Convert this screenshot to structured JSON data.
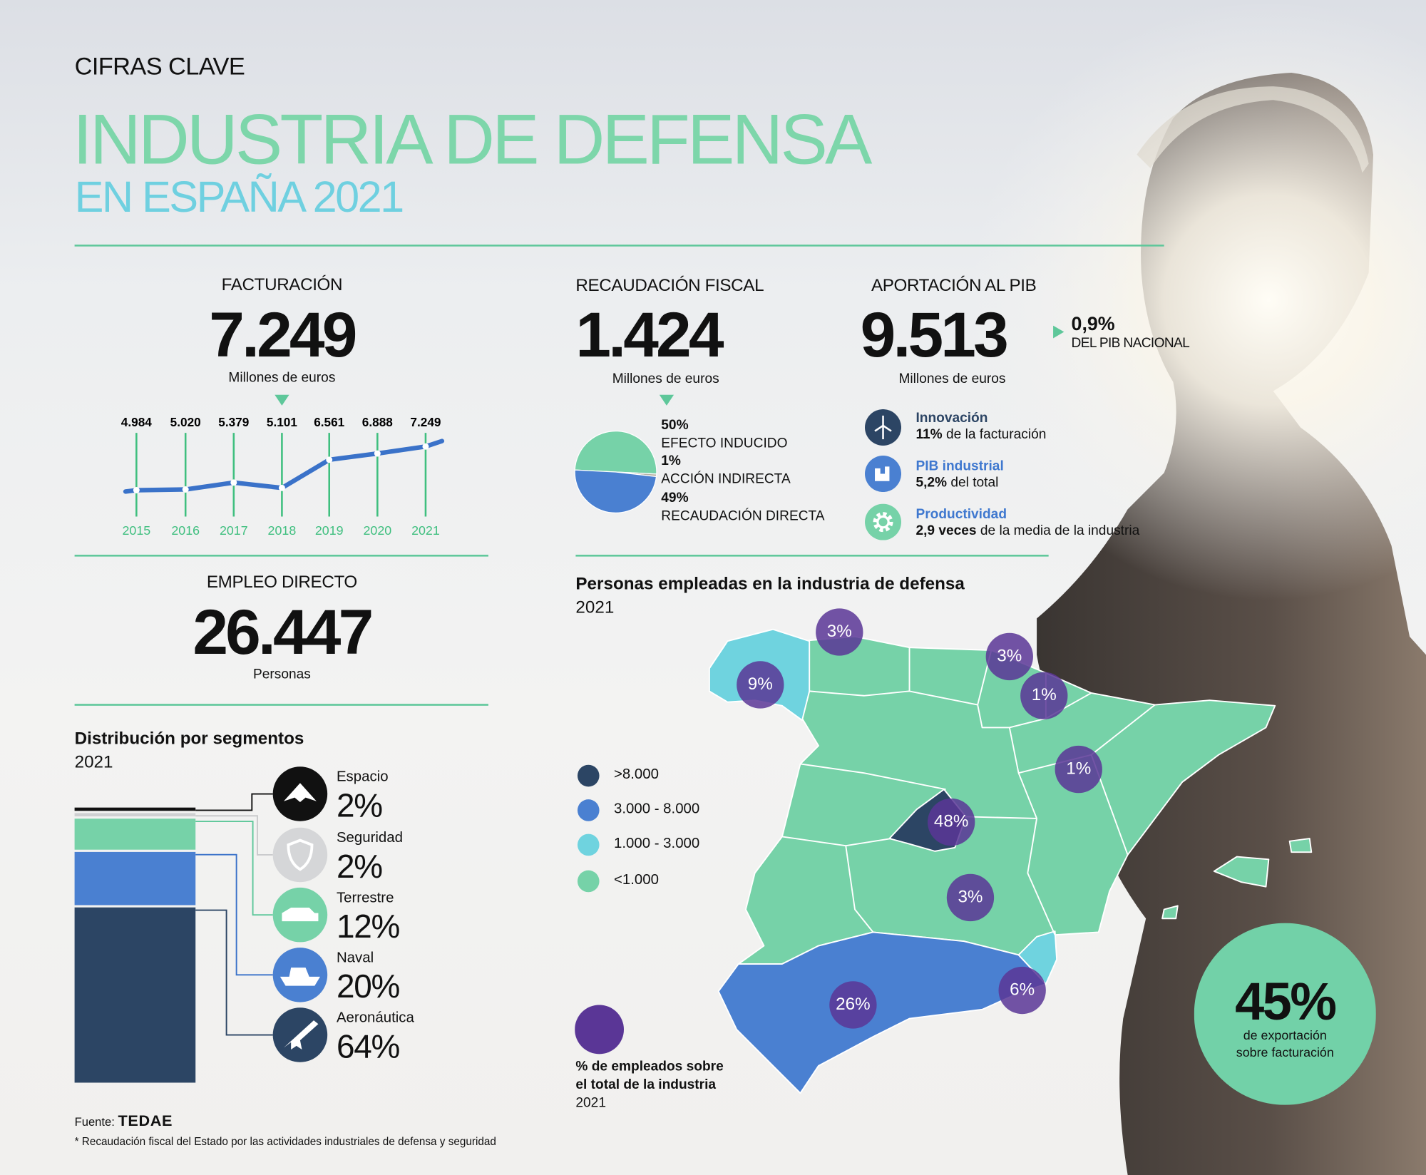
{
  "header": {
    "kicker": "CIFRAS CLAVE",
    "title": "INDUSTRIA DE DEFENSA",
    "subtitle": "EN ESPAÑA 2021"
  },
  "colors": {
    "green": "#76d2a8",
    "cyan": "#6fd3df",
    "blue": "#4a80d1",
    "navy": "#2c4564",
    "purple": "#5a3696",
    "title_green": "#7dd6aa",
    "title_cyan": "#6fd0e0"
  },
  "facturacion": {
    "label": "FACTURACIÓN",
    "value": "7.249",
    "unit": "Millones de euros"
  },
  "chart_data": {
    "type": "line",
    "categories": [
      "2015",
      "2016",
      "2017",
      "2018",
      "2019",
      "2020",
      "2021"
    ],
    "values": [
      4984,
      5020,
      5379,
      5101,
      6561,
      6888,
      7249
    ],
    "value_labels": [
      "4.984",
      "5.020",
      "5.379",
      "5.101",
      "6.561",
      "6.888",
      "7.249"
    ],
    "unit": "Millones de euros",
    "grid": "vertical"
  },
  "recaudacion": {
    "label": "RECAUDACIÓN FISCAL",
    "value": "1.424",
    "unit": "Millones de euros",
    "pie": [
      {
        "pct": "50%",
        "label": "EFECTO INDUCIDO",
        "value": 50,
        "color": "#76d2a8"
      },
      {
        "pct": "1%",
        "label": "ACCIÓN INDIRECTA",
        "value": 1,
        "color": "#b9b3a6"
      },
      {
        "pct": "49%",
        "label": "RECAUDACIÓN DIRECTA",
        "value": 49,
        "color": "#4a80d1"
      }
    ]
  },
  "pib": {
    "label": "APORTACIÓN AL PIB",
    "value": "9.513",
    "unit": "Millones de euros",
    "share": "0,9%",
    "share_label": "DEL PIB NACIONAL",
    "items": [
      {
        "icon": "wind-turbine-icon",
        "title": "Innovación",
        "bold": "11%",
        "text": " de la facturación"
      },
      {
        "icon": "factory-icon",
        "title": "PIB industrial",
        "bold": "5,2%",
        "text": " del total"
      },
      {
        "icon": "gear-icon",
        "title": "Productividad",
        "bold": "2,9 veces",
        "text": " de la media de la industria"
      }
    ]
  },
  "empleo": {
    "label": "EMPLEO DIRECTO",
    "value": "26.447",
    "unit": "Personas"
  },
  "segmentos": {
    "title": "Distribución por segmentos",
    "year": "2021",
    "items": [
      {
        "name": "Espacio",
        "pct": "2%",
        "value": 2,
        "icon": "space-shuttle-icon",
        "color": "#111111"
      },
      {
        "name": "Seguridad",
        "pct": "2%",
        "value": 2,
        "icon": "shield-icon",
        "color": "#cfd0d2"
      },
      {
        "name": "Terrestre",
        "pct": "12%",
        "value": 12,
        "icon": "military-vehicle-icon",
        "color": "#76d2a8"
      },
      {
        "name": "Naval",
        "pct": "20%",
        "value": 20,
        "icon": "ship-icon",
        "color": "#4a80d1"
      },
      {
        "name": "Aeronáutica",
        "pct": "64%",
        "value": 64,
        "icon": "fighter-jet-icon",
        "color": "#2c4564"
      }
    ]
  },
  "mapa": {
    "title": "Personas empleadas en la industria de defensa",
    "year": "2021",
    "legend": [
      {
        "label": ">8.000",
        "color": "#2c4564"
      },
      {
        "label": "3.000 - 8.000",
        "color": "#4a80d1"
      },
      {
        "label": "1.000 - 3.000",
        "color": "#6fd3df"
      },
      {
        "label": "<1.000",
        "color": "#76d2a8"
      }
    ],
    "bubble_legend": {
      "line1": "% de empleados sobre",
      "line2": "el total de la industria",
      "year": "2021"
    },
    "regions": [
      {
        "name": "Asturias",
        "pct": "3%"
      },
      {
        "name": "Galicia",
        "pct": "9%"
      },
      {
        "name": "País Vasco",
        "pct": "3%"
      },
      {
        "name": "Navarra",
        "pct": "1%"
      },
      {
        "name": "Aragón",
        "pct": "1%"
      },
      {
        "name": "Madrid",
        "pct": "48%"
      },
      {
        "name": "Castilla-La Mancha",
        "pct": "3%"
      },
      {
        "name": "Andalucía",
        "pct": "26%"
      },
      {
        "name": "Murcia",
        "pct": "6%"
      }
    ]
  },
  "exportacion": {
    "value": "45%",
    "line1": "de exportación",
    "line2": "sobre facturación"
  },
  "footer": {
    "source_label": "Fuente:",
    "source_logo": "TEDAE",
    "note": "* Recaudación fiscal del Estado por las actividades industriales de defensa y seguridad"
  }
}
